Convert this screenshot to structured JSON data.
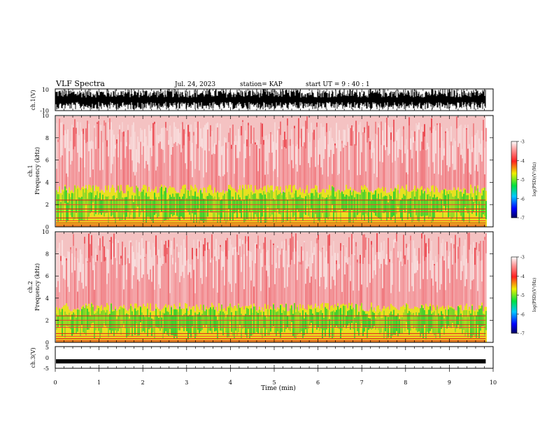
{
  "header": {
    "title": "VLF Spectra",
    "date": "Jul. 24, 2023",
    "station": "station= KAP",
    "start": "start  UT  =   9 : 40 : 1"
  },
  "chart_data": [
    {
      "type": "line",
      "panel": "ch1-waveform",
      "ylabel": "ch.1(V)",
      "ylim": [
        -10,
        10
      ],
      "y_ticks": [
        "10",
        "-10"
      ],
      "x_range_min": [
        0,
        9.83
      ]
    },
    {
      "type": "heatmap",
      "panel": "ch1-spectrogram",
      "ylabel": "ch.1\nFrequency (kHz)",
      "ylim": [
        0,
        10
      ],
      "y_ticks": [
        "0",
        "2",
        "4",
        "6",
        "8",
        "10"
      ],
      "x_range_min": [
        0,
        9.83
      ],
      "band_top_khz": 3.0,
      "colorbar": {
        "label": "log(PSD)(V²/Hz)",
        "ticks": [
          "-3",
          "-4",
          "-5",
          "-6",
          "-7"
        ],
        "range": [
          -7,
          -3
        ]
      }
    },
    {
      "type": "heatmap",
      "panel": "ch2-spectrogram",
      "ylabel": "ch.2\nFrequency (kHz)",
      "ylim": [
        0,
        10
      ],
      "y_ticks": [
        "0",
        "2",
        "4",
        "6",
        "8",
        "10"
      ],
      "x_range_min": [
        0,
        9.83
      ],
      "band_top_khz": 2.8,
      "colorbar": {
        "label": "log(PSD)(V²/Hz)",
        "ticks": [
          "-3",
          "-4",
          "-5",
          "-6",
          "-7"
        ],
        "range": [
          -7,
          -3
        ]
      }
    },
    {
      "type": "line",
      "panel": "ch3-waveform",
      "ylabel": "ch.3(V)",
      "ylim": [
        -5,
        5
      ],
      "y_ticks": [
        "5",
        "0",
        "-5"
      ],
      "x_range_min": [
        0,
        9.83
      ],
      "level_v": -1.8
    }
  ],
  "xaxis": {
    "label": "Time  (min)",
    "ticks": [
      "0",
      "1",
      "2",
      "3",
      "4",
      "5",
      "6",
      "7",
      "8",
      "9",
      "10"
    ],
    "range": [
      0,
      10
    ]
  },
  "colors": {
    "spectrum_red": "#e8202a",
    "spectrum_yellow": "#e8e020",
    "spectrum_green": "#22cc30"
  }
}
